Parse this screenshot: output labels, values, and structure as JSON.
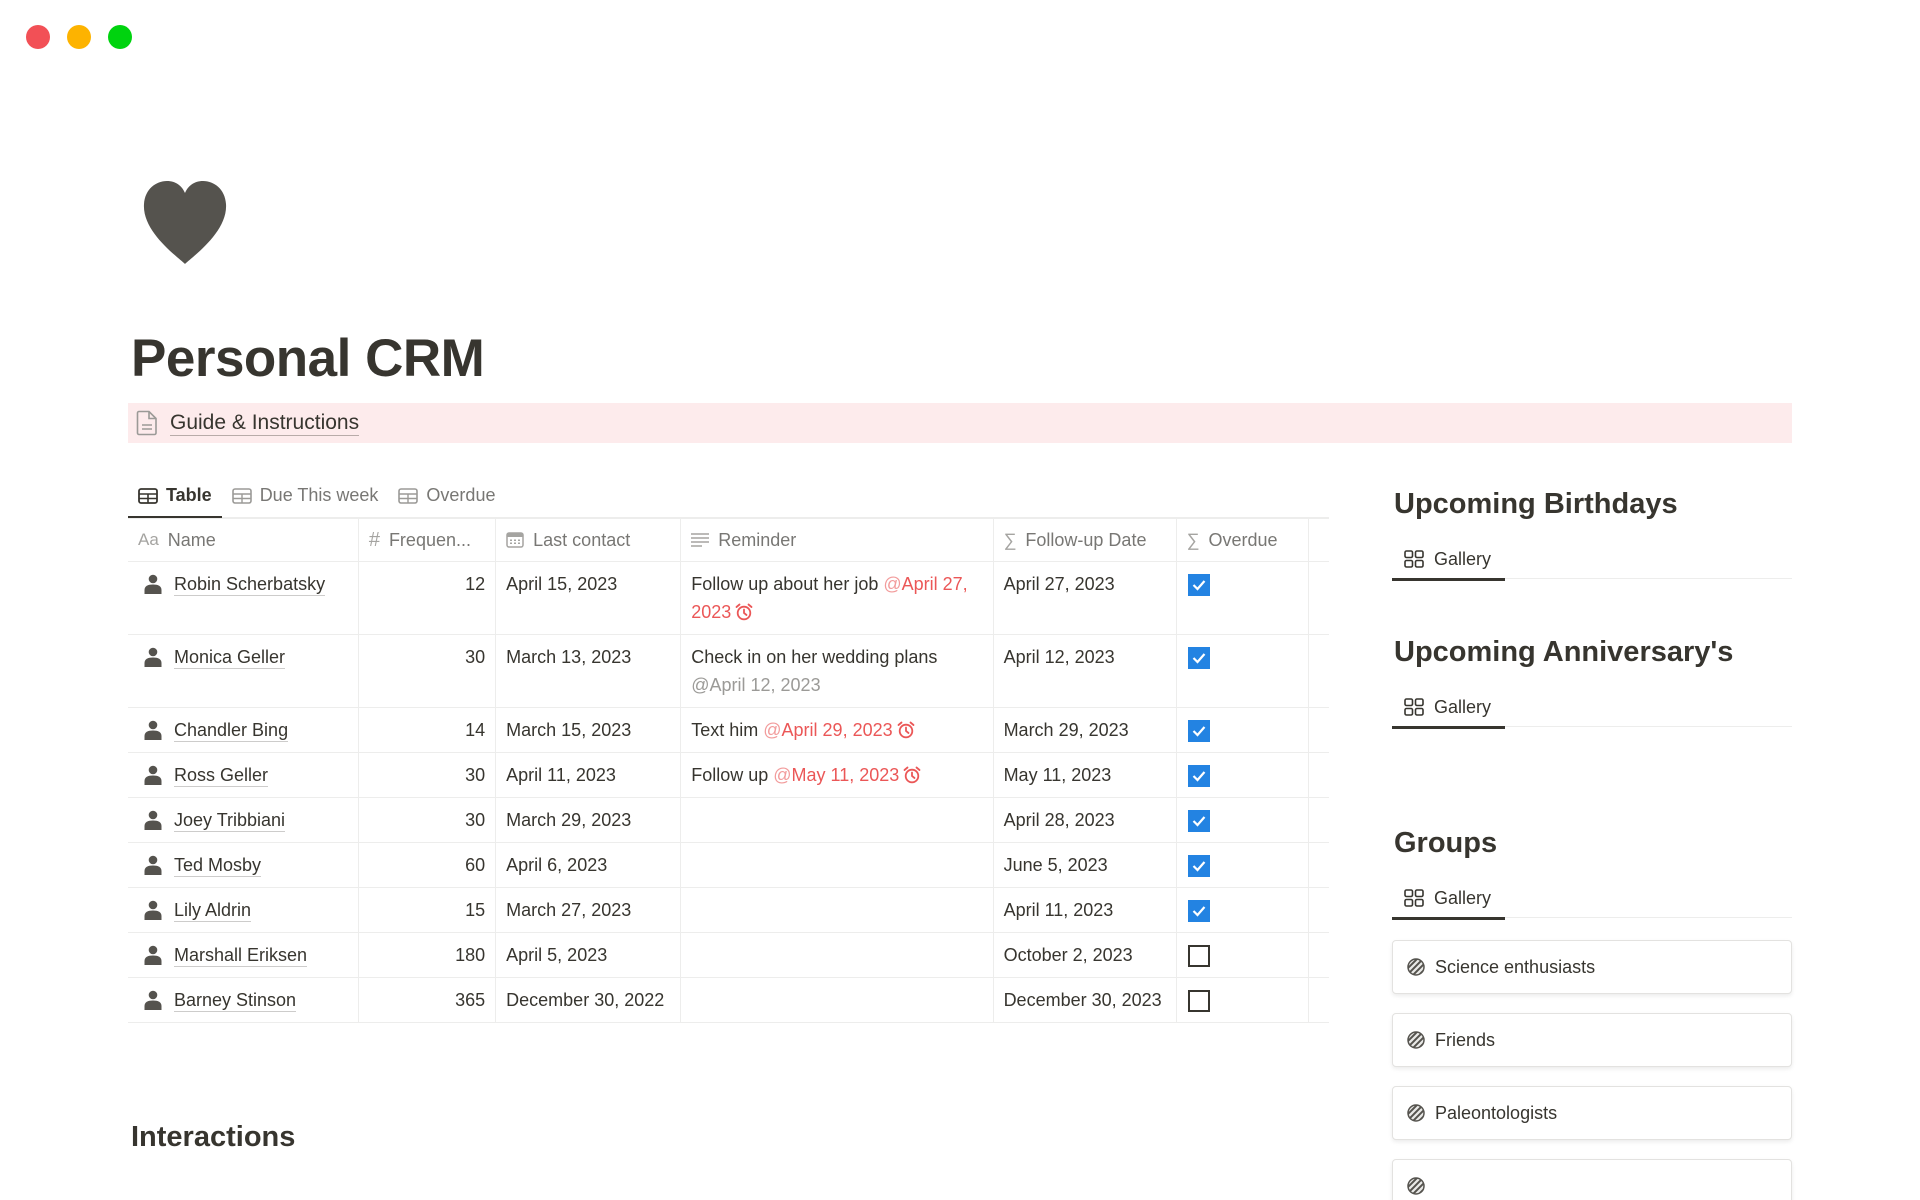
{
  "window": {
    "controls": [
      {
        "name": "close",
        "color": "#f25056"
      },
      {
        "name": "minimize",
        "color": "#fdb300"
      },
      {
        "name": "maximize",
        "color": "#00d30f"
      }
    ]
  },
  "page": {
    "icon": "heart-icon",
    "title": "Personal CRM",
    "callout": {
      "icon": "document-icon",
      "link_label": "Guide & Instructions",
      "background": "#fdebec"
    }
  },
  "contacts_view": {
    "tabs": [
      {
        "label": "Table",
        "icon": "table-icon",
        "active": true
      },
      {
        "label": "Due This week",
        "icon": "table-icon",
        "active": false
      },
      {
        "label": "Overdue",
        "icon": "table-icon",
        "active": false
      }
    ],
    "columns": [
      {
        "key": "name",
        "label": "Name",
        "icon": "Aa"
      },
      {
        "key": "frequency",
        "label": "Frequen...",
        "icon": "#"
      },
      {
        "key": "last_contact",
        "label": "Last contact",
        "icon": "calendar-icon"
      },
      {
        "key": "reminder",
        "label": "Reminder",
        "icon": "text-lines-icon"
      },
      {
        "key": "follow_up",
        "label": "Follow-up Date",
        "icon": "Σ"
      },
      {
        "key": "overdue",
        "label": "Overdue",
        "icon": "Σ"
      }
    ],
    "rows": [
      {
        "name": "Robin Scherbatsky",
        "frequency": "12",
        "last_contact": "April 15, 2023",
        "reminder_text": "Follow up about her job ",
        "reminder_date": "April 27, 2023",
        "reminder_style": "red",
        "reminder_alarm": true,
        "follow_up": "April 27, 2023",
        "overdue": true
      },
      {
        "name": "Monica Geller",
        "frequency": "30",
        "last_contact": "March 13, 2023",
        "reminder_text": "Check in on her wedding plans ",
        "reminder_date": "April 12, 2023",
        "reminder_style": "grey",
        "reminder_alarm": false,
        "follow_up": "April 12, 2023",
        "overdue": true
      },
      {
        "name": "Chandler Bing",
        "frequency": "14",
        "last_contact": "March 15, 2023",
        "reminder_text": "Text him ",
        "reminder_date": "April 29, 2023",
        "reminder_style": "red",
        "reminder_alarm": true,
        "follow_up": "March 29, 2023",
        "overdue": true
      },
      {
        "name": "Ross Geller",
        "frequency": "30",
        "last_contact": "April 11, 2023",
        "reminder_text": "Follow up ",
        "reminder_date": "May 11, 2023",
        "reminder_style": "red",
        "reminder_alarm": true,
        "follow_up": "May 11, 2023",
        "overdue": true
      },
      {
        "name": "Joey Tribbiani",
        "frequency": "30",
        "last_contact": "March 29, 2023",
        "reminder_text": "",
        "reminder_date": "",
        "reminder_style": "",
        "reminder_alarm": false,
        "follow_up": "April 28, 2023",
        "overdue": true
      },
      {
        "name": "Ted Mosby",
        "frequency": "60",
        "last_contact": "April 6, 2023",
        "reminder_text": "",
        "reminder_date": "",
        "reminder_style": "",
        "reminder_alarm": false,
        "follow_up": "June 5, 2023",
        "overdue": true
      },
      {
        "name": "Lily Aldrin",
        "frequency": "15",
        "last_contact": "March 27, 2023",
        "reminder_text": "",
        "reminder_date": "",
        "reminder_style": "",
        "reminder_alarm": false,
        "follow_up": "April 11, 2023",
        "overdue": true
      },
      {
        "name": "Marshall Eriksen",
        "frequency": "180",
        "last_contact": "April 5, 2023",
        "reminder_text": "",
        "reminder_date": "",
        "reminder_style": "",
        "reminder_alarm": false,
        "follow_up": "October 2, 2023",
        "overdue": false
      },
      {
        "name": "Barney Stinson",
        "frequency": "365",
        "last_contact": "December 30, 2022",
        "reminder_text": "",
        "reminder_date": "",
        "reminder_style": "",
        "reminder_alarm": false,
        "follow_up": "December 30, 2023",
        "overdue": false
      }
    ]
  },
  "interactions": {
    "heading": "Interactions"
  },
  "sidebar": {
    "birthdays": {
      "heading": "Upcoming Birthdays",
      "tab_label": "Gallery"
    },
    "anniversaries": {
      "heading": "Upcoming Anniversary's",
      "tab_label": "Gallery"
    },
    "groups": {
      "heading": "Groups",
      "tab_label": "Gallery",
      "cards": [
        {
          "label": "Science enthusiasts"
        },
        {
          "label": "Friends"
        },
        {
          "label": " Paleontologists"
        },
        {
          "label": ""
        }
      ]
    }
  },
  "colors": {
    "text": "#37352f",
    "muted": "#787774",
    "checkbox_blue": "#2383e2",
    "mention_red": "#eb5757",
    "divider": "#ededec"
  }
}
